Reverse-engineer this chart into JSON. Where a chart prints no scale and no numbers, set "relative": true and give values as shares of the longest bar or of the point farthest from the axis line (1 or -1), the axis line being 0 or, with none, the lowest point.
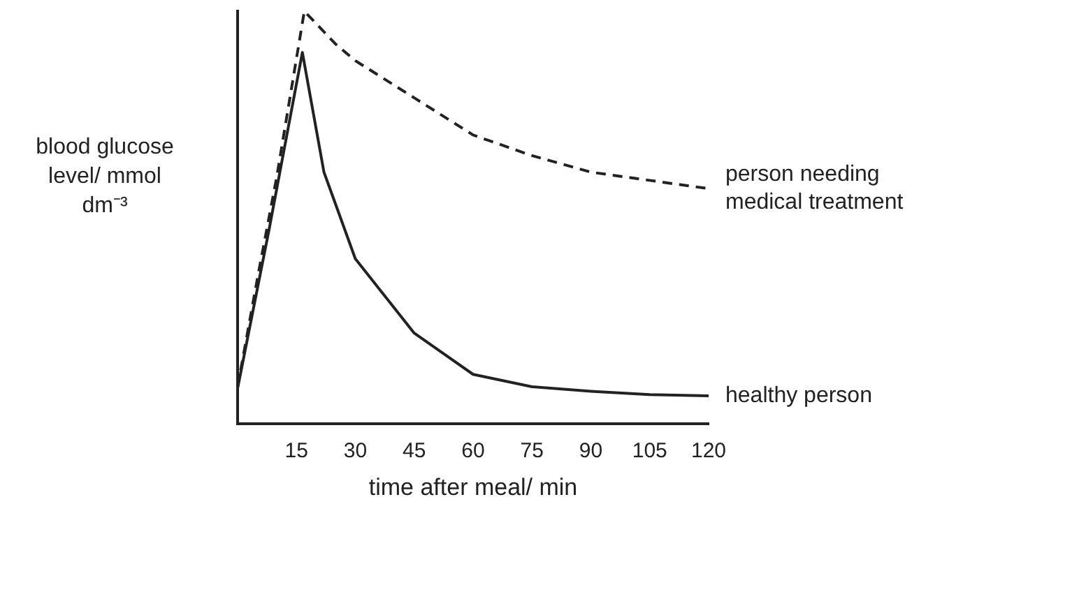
{
  "chart_data": {
    "type": "line",
    "relative": true,
    "xlabel": "time after meal/ min",
    "ylabel": "blood glucose level/ mmol dm⁻³",
    "xlim": [
      0,
      120
    ],
    "xticks": [
      15,
      30,
      45,
      60,
      75,
      90,
      105,
      120
    ],
    "legend": false,
    "grid": false,
    "marker": "none",
    "series": [
      {
        "name": "person needing medical treatment",
        "color": "#222222",
        "line_style": "dashed",
        "x": [
          0,
          5,
          10,
          17,
          25,
          30,
          45,
          60,
          75,
          90,
          105,
          120
        ],
        "values": [
          0.09,
          0.35,
          0.6,
          1.0,
          0.92,
          0.88,
          0.79,
          0.7,
          0.65,
          0.61,
          0.59,
          0.57
        ]
      },
      {
        "name": "healthy person",
        "color": "#222222",
        "line_style": "solid",
        "x": [
          0,
          8,
          16.5,
          22,
          30,
          45,
          60,
          75,
          90,
          105,
          120
        ],
        "values": [
          0.086,
          0.47,
          0.9,
          0.61,
          0.4,
          0.22,
          0.12,
          0.09,
          0.079,
          0.071,
          0.068
        ]
      }
    ]
  }
}
